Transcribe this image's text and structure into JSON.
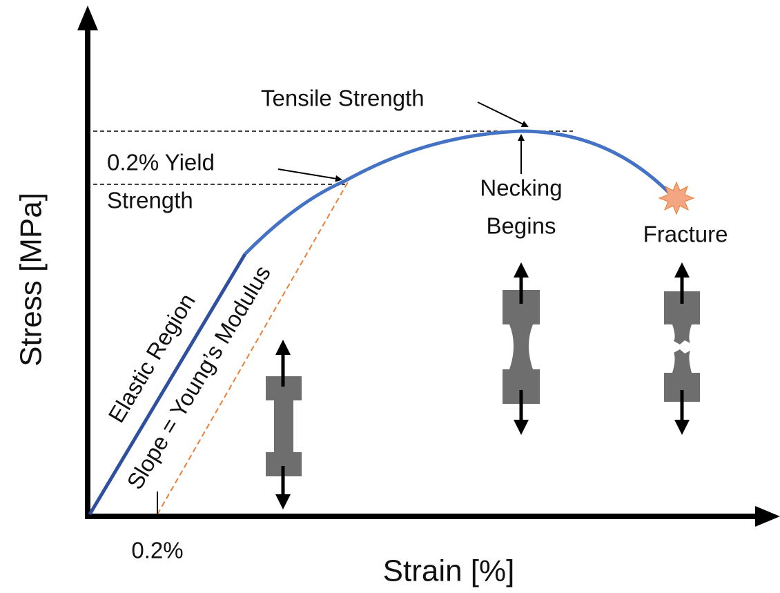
{
  "axes": {
    "y_label": "Stress [MPa]",
    "x_label": "Strain [%]",
    "offset_label": "0.2%"
  },
  "annotations": {
    "tensile_strength": "Tensile Strength",
    "yield_strength": [
      "0.2% Yield",
      "Strength"
    ],
    "necking": [
      "Necking",
      "Begins"
    ],
    "fracture": "Fracture",
    "elastic_region": "Elastic Region",
    "slope": "Slope = Young’s Modulus"
  }
}
